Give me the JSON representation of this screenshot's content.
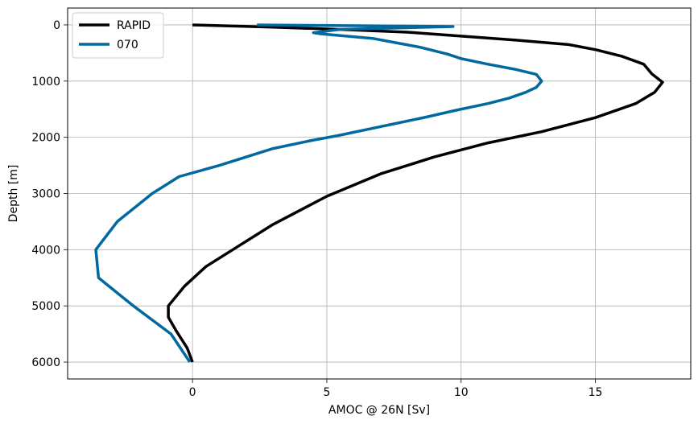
{
  "chart_data": {
    "type": "line",
    "xlabel": "AMOC @ 26N [Sv]",
    "ylabel": "Depth [m]",
    "xlim": [
      -4.65,
      18.55
    ],
    "ylim": [
      6300,
      -300
    ],
    "y_inverted": true,
    "grid": true,
    "legend_placement": "top-left",
    "x_ticks": [
      0,
      5,
      10,
      15
    ],
    "y_ticks": [
      0,
      1000,
      2000,
      3000,
      4000,
      5000,
      6000
    ],
    "series": [
      {
        "name": "RAPID",
        "color": "#000000",
        "points": [
          [
            0,
            0
          ],
          [
            3,
            40
          ],
          [
            6,
            90
          ],
          [
            8,
            130
          ],
          [
            10,
            200
          ],
          [
            12,
            270
          ],
          [
            14,
            350
          ],
          [
            15,
            440
          ],
          [
            16,
            560
          ],
          [
            16.8,
            700
          ],
          [
            17.1,
            870
          ],
          [
            17.5,
            1020
          ],
          [
            17.2,
            1200
          ],
          [
            16.5,
            1400
          ],
          [
            15,
            1650
          ],
          [
            13,
            1900
          ],
          [
            11,
            2100
          ],
          [
            9,
            2350
          ],
          [
            7,
            2650
          ],
          [
            5,
            3050
          ],
          [
            3,
            3550
          ],
          [
            1.5,
            4000
          ],
          [
            0.5,
            4300
          ],
          [
            -0.3,
            4650
          ],
          [
            -0.9,
            5000
          ],
          [
            -0.9,
            5200
          ],
          [
            -0.6,
            5450
          ],
          [
            -0.2,
            5750
          ],
          [
            0,
            6000
          ]
        ]
      },
      {
        "name": "070",
        "color": "#0069a0",
        "points": [
          [
            2.4,
            0
          ],
          [
            9.7,
            30
          ],
          [
            5.5,
            80
          ],
          [
            4.5,
            140
          ],
          [
            4.8,
            160
          ],
          [
            6.7,
            240
          ],
          [
            8.5,
            400
          ],
          [
            9.5,
            520
          ],
          [
            10,
            600
          ],
          [
            11,
            700
          ],
          [
            12,
            790
          ],
          [
            12.8,
            880
          ],
          [
            13,
            1000
          ],
          [
            12.8,
            1110
          ],
          [
            12.4,
            1200
          ],
          [
            11.8,
            1300
          ],
          [
            11,
            1400
          ],
          [
            9.8,
            1520
          ],
          [
            8.7,
            1640
          ],
          [
            6.8,
            1830
          ],
          [
            5.4,
            1970
          ],
          [
            4.5,
            2050
          ],
          [
            3,
            2200
          ],
          [
            1,
            2500
          ],
          [
            -0.5,
            2700
          ],
          [
            -1.5,
            3000
          ],
          [
            -2.8,
            3500
          ],
          [
            -3.6,
            4000
          ],
          [
            -3.5,
            4500
          ],
          [
            -2.2,
            5000
          ],
          [
            -0.8,
            5500
          ],
          [
            -0.1,
            6000
          ]
        ]
      }
    ]
  }
}
